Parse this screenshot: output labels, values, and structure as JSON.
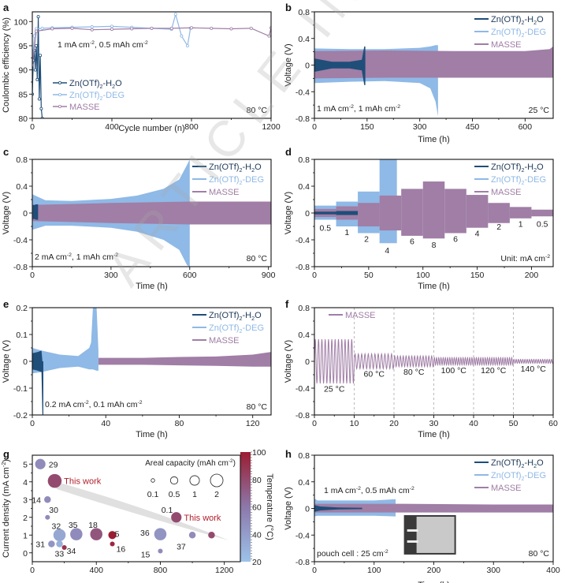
{
  "figure": {
    "watermark": "ARTICLE IN PRESS",
    "series_colors": {
      "Zn(OTf)2-H2O": "#1f4e79",
      "Zn(OTf)2-DEG": "#8fb9e6",
      "MASSE": "#a07ea6"
    },
    "colorbar_colors": {
      "low": "#9cc3ea",
      "high": "#9b1c31"
    }
  },
  "chart_data": [
    {
      "panel": "a",
      "type": "scatter",
      "title": "",
      "xlabel": "Cycle number (n)",
      "ylabel": "Coulombic efficiency (%)",
      "xlim": [
        0,
        1200
      ],
      "ylim": [
        80,
        102
      ],
      "xticks": [
        0,
        400,
        800,
        1200
      ],
      "yticks": [
        80,
        85,
        90,
        95,
        100
      ],
      "legend": {
        "placement": "bottom-left",
        "entries": [
          "Zn(OTf)2-H2O",
          "Zn(OTf)2-DEG",
          "MASSE"
        ]
      },
      "annotations": [
        "1 mA cm-2, 0.5 mAh cm-2",
        "80 °C"
      ],
      "series": [
        {
          "name": "Zn(OTf)2-H2O",
          "x": [
            0,
            5,
            10,
            15,
            20,
            25,
            30,
            35,
            40,
            45,
            50
          ],
          "y": [
            85,
            92,
            94,
            90,
            95,
            88,
            101,
            84,
            93,
            82,
            80
          ]
        },
        {
          "name": "Zn(OTf)2-DEG",
          "x": [
            0,
            10,
            20,
            50,
            100,
            200,
            300,
            400,
            500,
            600,
            700,
            720,
            750,
            780,
            795
          ],
          "y": [
            91,
            97,
            98.5,
            98.6,
            98.7,
            98.8,
            98.9,
            99,
            98.8,
            98.6,
            98.4,
            101.5,
            97,
            95,
            98.6
          ]
        },
        {
          "name": "MASSE",
          "x": [
            0,
            20,
            100,
            200,
            300,
            400,
            500,
            600,
            700,
            800,
            900,
            1000,
            1100,
            1190,
            1200
          ],
          "y": [
            91,
            98,
            98.5,
            98.6,
            98.3,
            98.4,
            98.5,
            98.6,
            98.6,
            98.7,
            98.6,
            98.5,
            98.6,
            97,
            98.7
          ]
        }
      ]
    },
    {
      "panel": "b",
      "type": "area",
      "xlabel": "Time (h)",
      "ylabel": "Voltage (V)",
      "xlim": [
        0,
        680
      ],
      "ylim": [
        -0.8,
        0.8
      ],
      "xticks": [
        0,
        150,
        300,
        450,
        600
      ],
      "yticks": [
        -0.8,
        -0.4,
        0.0,
        0.4,
        0.8
      ],
      "legend": {
        "placement": "top-right",
        "entries": [
          "Zn(OTf)2-H2O",
          "Zn(OTf)2-DEG",
          "MASSE"
        ]
      },
      "annotations": [
        "1 mA cm-2, 1 mAh cm-2",
        "25 °C"
      ],
      "series": [
        {
          "name": "Zn(OTf)2-DEG",
          "x": [
            0,
            100,
            200,
            300,
            330,
            345,
            352
          ],
          "upper": [
            0.25,
            0.24,
            0.24,
            0.26,
            0.28,
            0.3,
            0.3
          ],
          "lower": [
            -0.27,
            -0.25,
            -0.24,
            -0.27,
            -0.35,
            -0.55,
            -0.77
          ]
        },
        {
          "name": "MASSE",
          "x": [
            0,
            200,
            400,
            600,
            670,
            680
          ],
          "upper": [
            0.21,
            0.22,
            0.21,
            0.21,
            0.24,
            0.28
          ],
          "lower": [
            -0.2,
            -0.19,
            -0.19,
            -0.19,
            -0.19,
            -0.19
          ]
        },
        {
          "name": "Zn(OTf)2-H2O",
          "x": [
            0,
            50,
            100,
            135,
            142,
            145
          ],
          "upper": [
            0.1,
            0.05,
            0.05,
            0.08,
            0.28,
            0.28
          ],
          "lower": [
            -0.1,
            -0.05,
            -0.05,
            -0.08,
            -0.3,
            -0.3
          ]
        }
      ]
    },
    {
      "panel": "c",
      "type": "area",
      "xlabel": "Time (h)",
      "ylabel": "Voltage (V)",
      "xlim": [
        0,
        910
      ],
      "ylim": [
        -0.8,
        0.8
      ],
      "xticks": [
        0,
        300,
        600,
        900
      ],
      "yticks": [
        -0.8,
        -0.4,
        0.0,
        0.4,
        0.8
      ],
      "legend": {
        "placement": "top-right",
        "entries": [
          "Zn(OTf)2-H2O",
          "Zn(OTf)2-DEG",
          "MASSE"
        ]
      },
      "annotations": [
        "2 mA cm-2, 1 mAh cm-2",
        "80 °C"
      ],
      "series": [
        {
          "name": "Zn(OTf)2-DEG",
          "x": [
            0,
            50,
            150,
            300,
            400,
            500,
            560,
            590,
            600
          ],
          "upper": [
            0.28,
            0.19,
            0.18,
            0.21,
            0.26,
            0.36,
            0.5,
            0.72,
            0.8
          ],
          "lower": [
            -0.25,
            -0.19,
            -0.19,
            -0.22,
            -0.28,
            -0.4,
            -0.55,
            -0.78,
            -0.8
          ]
        },
        {
          "name": "MASSE",
          "x": [
            0,
            100,
            300,
            600,
            900,
            910
          ],
          "upper": [
            0.12,
            0.13,
            0.15,
            0.17,
            0.17,
            0.17
          ],
          "lower": [
            -0.12,
            -0.13,
            -0.15,
            -0.17,
            -0.17,
            -0.17
          ]
        },
        {
          "name": "Zn(OTf)2-H2O",
          "x": [
            2,
            8,
            15,
            22
          ],
          "upper": [
            0.12,
            0.12,
            0.13,
            0.13
          ],
          "lower": [
            -0.09,
            -0.09,
            -0.1,
            -0.1
          ]
        }
      ]
    },
    {
      "panel": "d",
      "type": "area",
      "xlabel": "Time (h)",
      "ylabel": "Voltage (V)",
      "xlim": [
        0,
        220
      ],
      "ylim": [
        -0.8,
        0.8
      ],
      "xticks": [
        0,
        50,
        100,
        150,
        200
      ],
      "yticks": [
        -0.8,
        -0.4,
        0.0,
        0.4,
        0.8
      ],
      "legend": {
        "placement": "top-right",
        "entries": [
          "Zn(OTf)2-H2O",
          "Zn(OTf)2-DEG",
          "MASSE"
        ]
      },
      "annotations": [
        "Unit: mA cm-2"
      ],
      "step_labels": [
        {
          "x": 10,
          "text": "0.5",
          "v": -0.22
        },
        {
          "x": 30,
          "text": "1",
          "v": -0.28
        },
        {
          "x": 48,
          "text": "2",
          "v": -0.38
        },
        {
          "x": 67,
          "text": "4",
          "v": -0.55
        },
        {
          "x": 90,
          "text": "6",
          "v": -0.42
        },
        {
          "x": 110,
          "text": "8",
          "v": -0.47
        },
        {
          "x": 130,
          "text": "6",
          "v": -0.38
        },
        {
          "x": 150,
          "text": "4",
          "v": -0.3
        },
        {
          "x": 170,
          "text": "2",
          "v": -0.2
        },
        {
          "x": 190,
          "text": "1",
          "v": -0.16
        },
        {
          "x": 210,
          "text": "0.5",
          "v": -0.16
        }
      ],
      "series": [
        {
          "name": "Zn(OTf)2-DEG",
          "steps": [
            [
              0,
              20,
              0.11,
              -0.1
            ],
            [
              20,
              40,
              0.17,
              -0.2
            ],
            [
              40,
              60,
              0.32,
              -0.3
            ],
            [
              60,
              76,
              0.8,
              -0.45
            ]
          ]
        },
        {
          "name": "MASSE",
          "steps": [
            [
              0,
              20,
              0.06,
              -0.06
            ],
            [
              20,
              40,
              0.1,
              -0.1
            ],
            [
              40,
              60,
              0.15,
              -0.2
            ],
            [
              60,
              80,
              0.26,
              -0.26
            ],
            [
              80,
              100,
              0.36,
              -0.34
            ],
            [
              100,
              120,
              0.47,
              -0.38
            ],
            [
              120,
              140,
              0.36,
              -0.3
            ],
            [
              140,
              160,
              0.27,
              -0.22
            ],
            [
              160,
              180,
              0.15,
              -0.15
            ],
            [
              180,
              200,
              0.09,
              -0.08
            ],
            [
              200,
              220,
              0.05,
              -0.05
            ]
          ]
        },
        {
          "name": "Zn(OTf)2-H2O",
          "steps": [
            [
              0,
              20,
              0.02,
              -0.02
            ],
            [
              20,
              40,
              0.03,
              -0.03
            ]
          ]
        }
      ]
    },
    {
      "panel": "e",
      "type": "area",
      "xlabel": "Time (h)",
      "ylabel": "Voltage (V)",
      "xlim": [
        0,
        130
      ],
      "ylim": [
        -0.2,
        0.2
      ],
      "xticks": [
        0,
        40,
        80,
        120
      ],
      "yticks": [
        -0.2,
        -0.1,
        0.0,
        0.1,
        0.2
      ],
      "legend": {
        "placement": "top-right",
        "entries": [
          "Zn(OTf)2-H2O",
          "Zn(OTf)2-DEG",
          "MASSE"
        ]
      },
      "annotations": [
        "0.2 mA cm-2, 0.1 mAh cm-2",
        "80 °C"
      ],
      "series": [
        {
          "name": "Zn(OTf)2-DEG",
          "x": [
            0,
            5,
            15,
            25,
            31,
            32,
            33,
            35,
            36
          ],
          "upper": [
            0.05,
            0.04,
            0.025,
            0.02,
            0.05,
            0.07,
            0.2,
            0.2,
            0.04
          ],
          "lower": [
            -0.045,
            -0.04,
            -0.025,
            -0.02,
            -0.03,
            -0.03,
            -0.03,
            -0.035,
            -0.035
          ]
        },
        {
          "name": "MASSE",
          "x": [
            36,
            60,
            80,
            100,
            120,
            130
          ],
          "upper": [
            0.013,
            0.013,
            0.016,
            0.018,
            0.025,
            0.035
          ],
          "lower": [
            -0.013,
            -0.013,
            -0.015,
            -0.017,
            -0.02,
            -0.02
          ]
        },
        {
          "name": "Zn(OTf)2-H2O",
          "x": [
            0,
            3,
            5,
            5.5,
            6
          ],
          "upper": [
            0.03,
            0.035,
            0.04,
            0.0,
            0.0
          ],
          "lower": [
            -0.03,
            -0.035,
            -0.04,
            -0.2,
            -0.2
          ]
        }
      ]
    },
    {
      "panel": "f",
      "type": "line",
      "xlabel": "Time (h)",
      "ylabel": "Voltage (V)",
      "xlim": [
        0,
        60
      ],
      "ylim": [
        -0.8,
        0.8
      ],
      "xticks": [
        0,
        10,
        20,
        30,
        40,
        50,
        60
      ],
      "yticks": [
        -0.8,
        -0.4,
        0.0,
        0.4,
        0.8
      ],
      "vlines": [
        10,
        20,
        30,
        40,
        50
      ],
      "legend": {
        "placement": "top-left",
        "entries": [
          "MASSE"
        ]
      },
      "segments": [
        {
          "label": "25 °C",
          "x0": 0,
          "x1": 10,
          "amplitude": 0.33,
          "cycles": 12
        },
        {
          "label": "60 °C",
          "x0": 10,
          "x1": 20,
          "amplitude": 0.11,
          "cycles": 12
        },
        {
          "label": "80 °C",
          "x0": 20,
          "x1": 30,
          "amplitude": 0.08,
          "cycles": 14
        },
        {
          "label": "100 °C",
          "x0": 30,
          "x1": 40,
          "amplitude": 0.055,
          "cycles": 18
        },
        {
          "label": "120 °C",
          "x0": 40,
          "x1": 50,
          "amplitude": 0.055,
          "cycles": 18
        },
        {
          "label": "140 °C",
          "x0": 50,
          "x1": 60,
          "amplitude": 0.03,
          "cycles": 18
        }
      ]
    },
    {
      "panel": "g",
      "type": "scatter",
      "xlabel": "",
      "ylabel": "Current density (mA cm-2)",
      "xlim": [
        0,
        1300
      ],
      "ylim": [
        -0.5,
        5.5
      ],
      "xticks": [
        0,
        400,
        800,
        1200
      ],
      "yticks": [
        0,
        1,
        2,
        3,
        4,
        5
      ],
      "colorbar": {
        "label": "Temperature (°C)",
        "range": [
          20,
          100
        ],
        "ticks": [
          20,
          40,
          60,
          80,
          100
        ]
      },
      "size_legend": {
        "title": "Areal capacity (mAh cm-2)",
        "entries": [
          "0.1",
          "0.5",
          "1",
          "2"
        ],
        "extra_label": "0.1"
      },
      "points": [
        {
          "label": "29",
          "x": 50,
          "y": 5,
          "capacity": 1,
          "temp": 50
        },
        {
          "label": "This work",
          "x": 140,
          "y": 4.05,
          "capacity": 2,
          "temp": 80,
          "highlight": true
        },
        {
          "label": "14",
          "x": 95,
          "y": 3,
          "capacity": 0.3,
          "temp": 50
        },
        {
          "label": "30",
          "x": 95,
          "y": 2,
          "capacity": 0.1,
          "temp": 50
        },
        {
          "label": "32",
          "x": 170,
          "y": 1,
          "capacity": 1.5,
          "temp": 35
        },
        {
          "label": "35",
          "x": 275,
          "y": 1.05,
          "capacity": 1.5,
          "temp": 50
        },
        {
          "label": "18",
          "x": 400,
          "y": 1.05,
          "capacity": 1.5,
          "temp": 75
        },
        {
          "label": "5",
          "x": 500,
          "y": 1,
          "capacity": 0.5,
          "temp": 100
        },
        {
          "label": "31",
          "x": 120,
          "y": 0.5,
          "capacity": 0.3,
          "temp": 45
        },
        {
          "label": "33",
          "x": 170,
          "y": 0.5,
          "capacity": 0.3,
          "temp": 30
        },
        {
          "label": "34",
          "x": 200,
          "y": 0.3,
          "capacity": 0.1,
          "temp": 90
        },
        {
          "label": "16",
          "x": 500,
          "y": 0.5,
          "capacity": 0.1,
          "temp": 95
        },
        {
          "label": "36",
          "x": 800,
          "y": 1.05,
          "capacity": 1.5,
          "temp": 45
        },
        {
          "label": "This work",
          "x": 900,
          "y": 2,
          "capacity": 1,
          "temp": 80,
          "highlight": true
        },
        {
          "label": "37",
          "x": 1000,
          "y": 1,
          "capacity": 0.3,
          "temp": 50
        },
        {
          "label": "",
          "x": 1120,
          "y": 1,
          "capacity": 0.3,
          "temp": 80
        },
        {
          "label": "15",
          "x": 800,
          "y": 0.1,
          "capacity": 0.1,
          "temp": 50
        }
      ]
    },
    {
      "panel": "h",
      "type": "area",
      "xlabel": "Time (h)",
      "ylabel": "Voltage (V)",
      "xlim": [
        0,
        400
      ],
      "ylim": [
        -0.8,
        0.8
      ],
      "xticks": [
        0,
        100,
        200,
        300,
        400
      ],
      "yticks": [
        -0.8,
        -0.4,
        0.0,
        0.4,
        0.8
      ],
      "legend": {
        "placement": "top-right",
        "entries": [
          "Zn(OTf)2-H2O",
          "Zn(OTf)2-DEG",
          "MASSE"
        ]
      },
      "annotations": [
        "1 mA cm-2, 0.5 mAh cm-2",
        "pouch cell : 25 cm-2",
        "80 °C"
      ],
      "inset": "pouch cell photo",
      "series": [
        {
          "name": "Zn(OTf)2-DEG",
          "x": [
            0,
            5,
            50,
            100,
            136
          ],
          "upper": [
            0.15,
            0.12,
            0.12,
            0.12,
            0.14
          ],
          "lower": [
            -0.12,
            -0.11,
            -0.11,
            -0.11,
            -0.12
          ]
        },
        {
          "name": "MASSE",
          "x": [
            0,
            150,
            300,
            400
          ],
          "upper": [
            0.07,
            0.07,
            0.06,
            0.06
          ],
          "lower": [
            -0.06,
            -0.06,
            -0.06,
            -0.06
          ]
        },
        {
          "name": "Zn(OTf)2-H2O",
          "x": [
            0,
            10,
            40,
            80
          ],
          "upper": [
            0.05,
            0.03,
            0.015,
            0.01
          ],
          "lower": [
            -0.05,
            -0.03,
            -0.015,
            -0.01
          ]
        }
      ]
    }
  ]
}
